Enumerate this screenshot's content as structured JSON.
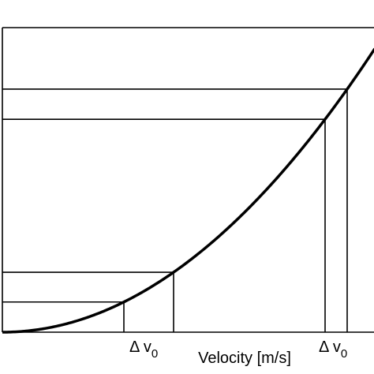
{
  "x_label": "Velocity [m/s]",
  "annotations": [
    {
      "label": "Δ v",
      "subscript": "0"
    },
    {
      "label": "Δ v",
      "subscript": "0"
    }
  ]
}
